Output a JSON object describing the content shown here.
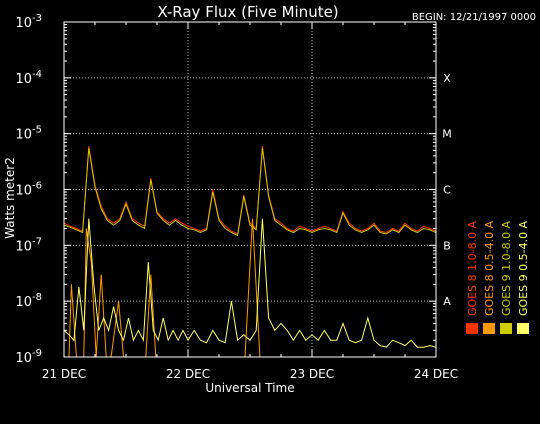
{
  "chart_data": {
    "type": "line",
    "title": "X-Ray Flux (Five Minute)",
    "begin_label": "BEGIN: 12/21/1997 0000",
    "xlabel": "Universal Time",
    "ylabel": "Watts meter2",
    "x_ticks": [
      "21 DEC",
      "22 DEC",
      "23 DEC",
      "24 DEC"
    ],
    "x_range_days": [
      0,
      3
    ],
    "y_scale": "log",
    "ylim": [
      1e-09,
      0.001
    ],
    "y_ticks": [
      {
        "base": "10",
        "exp": "-9"
      },
      {
        "base": "10",
        "exp": "-8"
      },
      {
        "base": "10",
        "exp": "-7"
      },
      {
        "base": "10",
        "exp": "-6"
      },
      {
        "base": "10",
        "exp": "-5"
      },
      {
        "base": "10",
        "exp": "-4"
      },
      {
        "base": "10",
        "exp": "-3"
      }
    ],
    "flare_classes": [
      "A",
      "B",
      "C",
      "M",
      "X"
    ],
    "grid": true,
    "series": [
      {
        "name": "GOES 8  1.0-8.0 A",
        "color": "#ff3300",
        "x": [
          0.0,
          0.05,
          0.1,
          0.15,
          0.2,
          0.25,
          0.3,
          0.35,
          0.4,
          0.45,
          0.5,
          0.55,
          0.6,
          0.65,
          0.7,
          0.75,
          0.8,
          0.85,
          0.9,
          0.95,
          1.0,
          1.05,
          1.1,
          1.15,
          1.2,
          1.25,
          1.3,
          1.35,
          1.4,
          1.45,
          1.5,
          1.55,
          1.6,
          1.65,
          1.7,
          1.75,
          1.8,
          1.85,
          1.9,
          1.95,
          2.0,
          2.05,
          2.1,
          2.15,
          2.2,
          2.25,
          2.3,
          2.35,
          2.4,
          2.45,
          2.5,
          2.55,
          2.6,
          2.65,
          2.7,
          2.75,
          2.8,
          2.85,
          2.9,
          2.95,
          3.0
        ],
        "y": [
          2.5e-07,
          2.2e-07,
          2e-07,
          1.8e-07,
          6e-06,
          1.2e-06,
          5e-07,
          3e-07,
          2.5e-07,
          3e-07,
          6e-07,
          3e-07,
          2.5e-07,
          2.2e-07,
          1.6e-06,
          4e-07,
          3e-07,
          2.5e-07,
          3e-07,
          2.5e-07,
          2.2e-07,
          2e-07,
          1.8e-07,
          2e-07,
          1e-06,
          3e-07,
          2.2e-07,
          1.8e-07,
          1.6e-07,
          8e-07,
          2.5e-07,
          2e-07,
          6e-06,
          8e-07,
          3e-07,
          2.5e-07,
          2e-07,
          1.8e-07,
          2.2e-07,
          2e-07,
          1.8e-07,
          2e-07,
          2.2e-07,
          2e-07,
          1.8e-07,
          4e-07,
          2.5e-07,
          2e-07,
          1.8e-07,
          2e-07,
          2.5e-07,
          1.8e-07,
          1.7e-07,
          2e-07,
          1.8e-07,
          2.5e-07,
          2e-07,
          1.8e-07,
          2.2e-07,
          2e-07,
          1.8e-07
        ]
      },
      {
        "name": "GOES 8  0.5-4.0 A",
        "color": "#ff9900",
        "x": [
          0.0,
          0.04,
          0.06,
          0.1,
          0.12,
          0.16,
          0.18,
          0.22,
          0.26,
          0.3,
          0.34,
          0.38,
          0.44,
          0.48,
          0.52,
          0.58,
          0.62,
          0.66,
          0.7,
          0.74,
          0.8,
          0.86,
          0.92,
          0.98,
          1.04,
          1.1,
          1.16,
          1.22,
          1.28,
          1.34,
          1.4,
          1.46,
          1.52,
          1.58,
          1.64,
          1.7,
          1.76,
          1.82,
          1.88,
          1.94,
          2.0,
          2.1,
          2.2,
          2.3,
          2.4,
          2.5,
          2.6,
          2.7,
          2.8,
          2.9,
          3.0
        ],
        "y": [
          1e-09,
          1e-09,
          2e-08,
          1e-09,
          1e-09,
          1e-09,
          2e-07,
          5e-08,
          1e-09,
          3e-08,
          1e-09,
          1e-09,
          1e-08,
          1e-09,
          1e-09,
          1e-09,
          1e-09,
          1e-09,
          3e-08,
          1e-09,
          1e-09,
          1e-09,
          1e-09,
          1e-09,
          1e-09,
          1e-09,
          1e-09,
          1e-09,
          1e-09,
          1e-09,
          1e-09,
          1e-09,
          3e-07,
          1e-09,
          1e-09,
          1e-09,
          1e-09,
          1e-09,
          1e-09,
          1e-09,
          1e-09,
          1e-09,
          1e-09,
          1e-09,
          1e-09,
          1e-09,
          1e-09,
          1e-09,
          1e-09,
          1e-09,
          1e-09
        ]
      },
      {
        "name": "GOES 9  1.0-8.0 A",
        "color": "#cccc00",
        "x": [
          0.0,
          0.05,
          0.1,
          0.15,
          0.2,
          0.25,
          0.3,
          0.35,
          0.4,
          0.45,
          0.5,
          0.55,
          0.6,
          0.65,
          0.7,
          0.75,
          0.8,
          0.85,
          0.9,
          0.95,
          1.0,
          1.05,
          1.1,
          1.15,
          1.2,
          1.25,
          1.3,
          1.35,
          1.4,
          1.45,
          1.5,
          1.55,
          1.6,
          1.65,
          1.7,
          1.75,
          1.8,
          1.85,
          1.9,
          1.95,
          2.0,
          2.05,
          2.1,
          2.15,
          2.2,
          2.25,
          2.3,
          2.35,
          2.4,
          2.45,
          2.5,
          2.55,
          2.6,
          2.65,
          2.7,
          2.75,
          2.8,
          2.85,
          2.9,
          2.95,
          3.0
        ],
        "y": [
          2.3e-07,
          2.1e-07,
          1.9e-07,
          1.7e-07,
          5.5e-06,
          1.1e-06,
          4.5e-07,
          2.8e-07,
          2.3e-07,
          2.8e-07,
          5.5e-07,
          2.8e-07,
          2.3e-07,
          2e-07,
          1.5e-06,
          3.8e-07,
          2.8e-07,
          2.3e-07,
          2.8e-07,
          2.3e-07,
          2e-07,
          1.9e-07,
          1.7e-07,
          1.9e-07,
          9e-07,
          2.8e-07,
          2e-07,
          1.7e-07,
          1.5e-07,
          7.5e-07,
          2.3e-07,
          1.9e-07,
          5.5e-06,
          7.5e-07,
          2.8e-07,
          2.3e-07,
          1.9e-07,
          1.7e-07,
          2e-07,
          1.9e-07,
          1.7e-07,
          1.9e-07,
          2e-07,
          1.9e-07,
          1.7e-07,
          3.8e-07,
          2.3e-07,
          1.9e-07,
          1.7e-07,
          1.9e-07,
          2.3e-07,
          1.7e-07,
          1.6e-07,
          1.9e-07,
          1.7e-07,
          2.3e-07,
          1.9e-07,
          1.7e-07,
          2e-07,
          1.9e-07,
          1.7e-07
        ]
      },
      {
        "name": "GOES 9  0.5-4.0 A",
        "color": "#ffff66",
        "x": [
          0.0,
          0.04,
          0.08,
          0.12,
          0.16,
          0.2,
          0.24,
          0.28,
          0.32,
          0.36,
          0.4,
          0.44,
          0.48,
          0.52,
          0.56,
          0.6,
          0.64,
          0.68,
          0.72,
          0.76,
          0.8,
          0.84,
          0.88,
          0.92,
          0.96,
          1.0,
          1.05,
          1.1,
          1.15,
          1.2,
          1.25,
          1.3,
          1.35,
          1.4,
          1.45,
          1.5,
          1.55,
          1.6,
          1.65,
          1.7,
          1.75,
          1.8,
          1.85,
          1.9,
          1.95,
          2.0,
          2.05,
          2.1,
          2.15,
          2.2,
          2.25,
          2.3,
          2.35,
          2.4,
          2.45,
          2.5,
          2.55,
          2.6,
          2.65,
          2.7,
          2.75,
          2.8,
          2.85,
          2.9,
          2.95,
          3.0
        ],
        "y": [
          3e-09,
          2.5e-09,
          2e-09,
          1.8e-08,
          3e-09,
          3e-07,
          2e-08,
          3e-09,
          5e-09,
          3e-09,
          8e-09,
          3e-09,
          2e-09,
          5e-09,
          2e-09,
          3e-09,
          2e-09,
          5e-08,
          3e-09,
          2e-09,
          5e-09,
          2e-09,
          3e-09,
          2e-09,
          3e-09,
          2e-09,
          3e-09,
          2e-09,
          1.8e-09,
          3e-09,
          2e-09,
          1.8e-09,
          1e-08,
          2e-09,
          2.5e-09,
          2e-09,
          3e-09,
          3e-07,
          5e-09,
          3e-09,
          4e-09,
          3e-09,
          2e-09,
          3e-09,
          2e-09,
          2.5e-09,
          2e-09,
          3e-09,
          2e-09,
          2e-09,
          4e-09,
          2e-09,
          1.8e-09,
          2e-09,
          5e-09,
          2e-09,
          1.6e-09,
          1.5e-09,
          2e-09,
          1.8e-09,
          1.6e-09,
          2e-09,
          1.5e-09,
          1.5e-09,
          1.6e-09,
          1.5e-09
        ]
      }
    ]
  }
}
